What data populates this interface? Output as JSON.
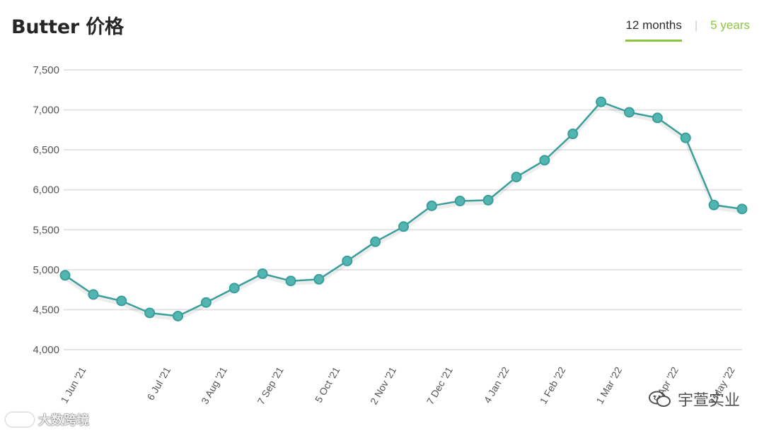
{
  "header": {
    "title": "Butter 价格"
  },
  "tabs": [
    {
      "label": "12 months",
      "active": true
    },
    {
      "label": "5 years",
      "active": false
    }
  ],
  "colors": {
    "line": "#3a9e9b",
    "marker_fill": "#52b5b1",
    "accent": "#8dc63f",
    "grid": "#e3e3e3"
  },
  "watermarks": {
    "left": "大数跨境",
    "right": "宇萱实业"
  },
  "chart_data": {
    "type": "line",
    "title": "Butter 价格",
    "xlabel": "",
    "ylabel": "",
    "ylim": [
      4000,
      7500
    ],
    "y_ticks": [
      "4,000",
      "4,500",
      "5,000",
      "5,500",
      "6,000",
      "6,500",
      "7,000",
      "7,500"
    ],
    "y_tick_values": [
      4000,
      4500,
      5000,
      5500,
      6000,
      6500,
      7000,
      7500
    ],
    "grid": true,
    "legend": "none",
    "x_tick_labels": [
      "1 Jun '21",
      "6 Jul '21",
      "3 Aug '21",
      "7 Sep '21",
      "5 Oct '21",
      "2 Nov '21",
      "7 Dec '21",
      "4 Jan '22",
      "1 Feb '22",
      "1 Mar '22",
      "5 Apr '22",
      "3 May '22"
    ],
    "x_tick_point_index": [
      0,
      3,
      5,
      7,
      9,
      11,
      13,
      15,
      17,
      19,
      21,
      23
    ],
    "series": [
      {
        "values": [
          4930,
          4690,
          4610,
          4460,
          4420,
          4590,
          4770,
          4950,
          4860,
          4880,
          5110,
          5350,
          5540,
          5800,
          5860,
          5870,
          6160,
          6370,
          6700,
          7100,
          6970,
          6900,
          6650,
          5810,
          5760
        ]
      }
    ]
  }
}
